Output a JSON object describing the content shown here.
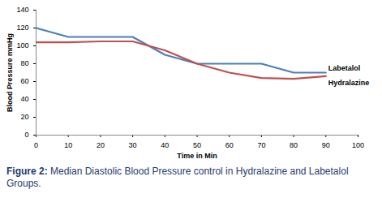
{
  "chart_data": {
    "type": "line",
    "caption": "Figure 2: Median Diastolic Blood Pressure control in Hydralazine and Labetalol Groups.",
    "x_label": "Time in Min",
    "y_label": "Blood Pressure mmHg",
    "x": [
      0,
      10,
      20,
      30,
      40,
      50,
      60,
      70,
      80,
      90
    ],
    "series": [
      {
        "name": "Labetalol",
        "color": "#4a7ebb",
        "values": [
          120,
          110,
          110,
          110,
          90,
          80,
          80,
          80,
          70,
          70
        ]
      },
      {
        "name": "Hydralazine",
        "color": "#c0504d",
        "values": [
          104,
          104,
          105,
          105,
          95,
          80,
          70,
          64,
          63,
          66
        ]
      }
    ],
    "xlim": [
      0,
      100
    ],
    "xticks": [
      0,
      10,
      20,
      30,
      40,
      50,
      60,
      70,
      80,
      90,
      100
    ],
    "ylim": [
      0,
      140
    ],
    "yticks": [
      0,
      20,
      40,
      60,
      80,
      100,
      120,
      140
    ],
    "grid": false
  }
}
